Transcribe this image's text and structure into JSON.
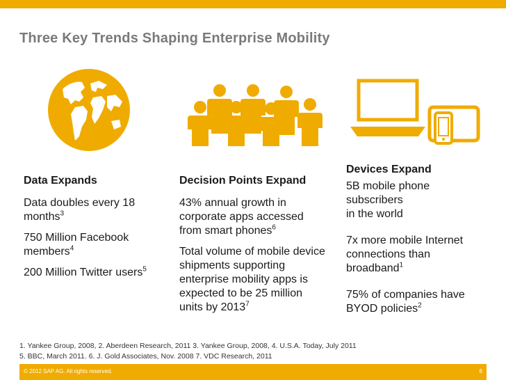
{
  "title": "Three Key Trends Shaping Enterprise Mobility",
  "icons": {
    "globe": "globe-icon",
    "people": "people-group-icon",
    "devices": "devices-icon"
  },
  "colors": {
    "accent": "#f0ab00",
    "title": "#7a7a7a"
  },
  "col1": {
    "heading": "Data Expands",
    "p1": "Data doubles every 18 months",
    "p1_sup": "3",
    "p2": "750 Million Facebook members",
    "p2_sup": "4",
    "p3": "200 Million Twitter users",
    "p3_sup": "5"
  },
  "col2": {
    "heading": "Decision Points Expand",
    "p1": "43% annual growth in corporate apps accessed from smart phones",
    "p1_sup": "6",
    "p2": "Total volume of mobile device shipments supporting enterprise mobility apps is expected to be 25 million units by 2013",
    "p2_sup": "7"
  },
  "col3": {
    "heading": "Devices Expand",
    "p1a": "5B mobile phone subscribers",
    "p1b": "in the world",
    "p2": "7x more mobile Internet connections than broadband",
    "p2_sup": "1",
    "p3": "75% of companies have BYOD policies",
    "p3_sup": "2"
  },
  "footnotes": {
    "line1": "1. Yankee Group, 2008, 2. Aberdeen Research, 2011 3. Yankee Group, 2008, 4. U.S.A. Today, July 2011",
    "line2": "5. BBC, March 2011. 6. J. Gold Associates, Nov. 2008 7. VDC Research, 2011"
  },
  "footer": {
    "copyright": "© 2012 SAP AG. All rights reserved.",
    "page": "6"
  }
}
